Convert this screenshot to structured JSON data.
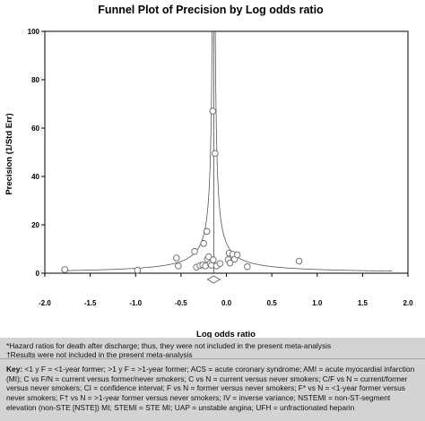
{
  "chart_data": {
    "type": "scatter",
    "title": "Funnel Plot of Precision by Log odds ratio",
    "xlabel": "Log odds ratio",
    "ylabel": "Precision (1/Std Err)",
    "xlim": [
      -2.0,
      2.0
    ],
    "ylim": [
      0,
      100
    ],
    "xticks": [
      "-2.0",
      "-1.5",
      "-1.0",
      "-0.5",
      "0.0",
      "0.5",
      "1.0",
      "1.5",
      "2.0"
    ],
    "yticks": [
      "0",
      "20",
      "40",
      "60",
      "80",
      "100"
    ],
    "pooled_estimate": -0.14,
    "funnel_k": 1.75,
    "funnel_xrange": [
      -1.82,
      1.83
    ],
    "points": [
      {
        "x": -1.78,
        "y": 1.5
      },
      {
        "x": -0.98,
        "y": 1.2
      },
      {
        "x": -0.55,
        "y": 6.3
      },
      {
        "x": -0.53,
        "y": 3.0
      },
      {
        "x": -0.35,
        "y": 9.0
      },
      {
        "x": -0.33,
        "y": 2.5
      },
      {
        "x": -0.29,
        "y": 3.2
      },
      {
        "x": -0.26,
        "y": 3.4
      },
      {
        "x": -0.25,
        "y": 12.3
      },
      {
        "x": -0.23,
        "y": 3.0
      },
      {
        "x": -0.215,
        "y": 17.3
      },
      {
        "x": -0.21,
        "y": 5.8
      },
      {
        "x": -0.195,
        "y": 6.8
      },
      {
        "x": -0.18,
        "y": 4.0
      },
      {
        "x": -0.165,
        "y": 3.3
      },
      {
        "x": -0.15,
        "y": 67.0
      },
      {
        "x": -0.145,
        "y": 5.5
      },
      {
        "x": -0.125,
        "y": 49.5
      },
      {
        "x": -0.11,
        "y": 3.0
      },
      {
        "x": -0.07,
        "y": 4.0
      },
      {
        "x": 0.02,
        "y": 5.6
      },
      {
        "x": 0.03,
        "y": 8.3
      },
      {
        "x": 0.04,
        "y": 4.2
      },
      {
        "x": 0.07,
        "y": 7.8
      },
      {
        "x": 0.09,
        "y": 5.8
      },
      {
        "x": 0.12,
        "y": 7.6
      },
      {
        "x": 0.23,
        "y": 2.7
      },
      {
        "x": 0.8,
        "y": 5.0
      }
    ],
    "grid": false,
    "legend": "none"
  },
  "footnotes": {
    "hazard": "*Hazard ratios for death after discharge; thus, they were not included in the present meta-analysis",
    "results": "†Results were not included in the present meta-analysis"
  },
  "key": {
    "label": "Key:",
    "text": " <1 y F = <1-year former; >1 y F = >1-year former; ACS = acute coronary syndrome; AMI = acute myocardial infarction (MI); C vs F/N = current versus former/never smokers; C vs N = current versus never smokers; C/F vs N = current/former versus never smokers; CI = confidence interval; F vs N = former versus never smokers; F* vs N = <1-year former versus never smokers; F† vs N = >1-year former versus never smokers; IV = inverse variance; NSTEMI = non-ST-segment elevation (non-STE [NSTE]) MI; STEMI = STE MI; UAP = unstable angina; UFH = unfractionated heparin"
  }
}
